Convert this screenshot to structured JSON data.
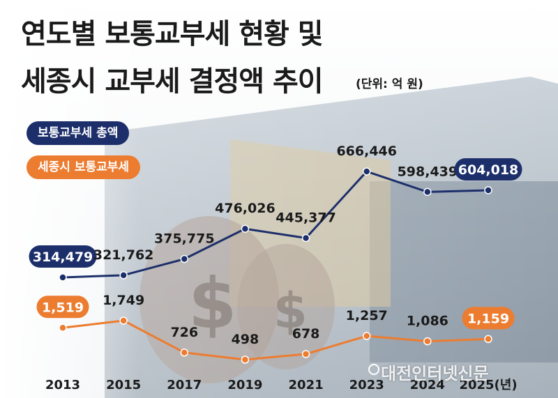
{
  "title_line1": "연도별 보통교부세 현황 및",
  "title_line2": "세종시 교부세 결정액 추이",
  "unit_note": "(단위: 억 원)",
  "watermark": "대전인터넷신문",
  "colors": {
    "total": "#1d2f6b",
    "sejong": "#ec7c30",
    "label_text": "#1a1a1a"
  },
  "chart_data": {
    "type": "line",
    "categories": [
      "2013",
      "2015",
      "2017",
      "2019",
      "2021",
      "2023",
      "2024",
      "2025(년)"
    ],
    "series": [
      {
        "name": "보통교부세 총액",
        "values": [
          314479,
          321762,
          375775,
          476026,
          445377,
          666446,
          598439,
          604018
        ],
        "labels": [
          "314,479",
          "321,762",
          "375,775",
          "476,026",
          "445,377",
          "666,446",
          "598,439",
          "604,018"
        ],
        "highlighted": [
          0,
          7
        ]
      },
      {
        "name": "세종시 보통교부세",
        "values": [
          1519,
          1749,
          726,
          498,
          678,
          1257,
          1086,
          1159
        ],
        "labels": [
          "1,519",
          "1,749",
          "726",
          "498",
          "678",
          "1,257",
          "1,086",
          "1,159"
        ],
        "highlighted": [
          0,
          7
        ]
      }
    ],
    "grid": false,
    "legend_position": "top-left"
  }
}
